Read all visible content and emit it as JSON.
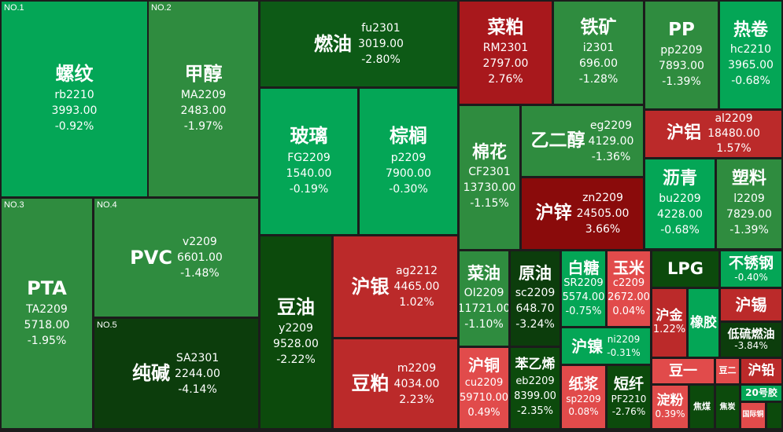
{
  "colors": {
    "background": "#1c1c1c",
    "dark_green": "#0c4a0c",
    "mid_green": "#2f8c3f",
    "bright_green": "#04a656",
    "red": "#bb2a2a",
    "dark_red": "#8a0b0b"
  },
  "ranks": {
    "r1": "NO.1",
    "r2": "NO.2",
    "r3": "NO.3",
    "r4": "NO.4",
    "r5": "NO.5"
  },
  "tiles": {
    "rb": {
      "name": "螺纹",
      "code": "rb2210",
      "price": "3993.00",
      "change": "-0.92%"
    },
    "ma": {
      "name": "甲醇",
      "code": "MA2209",
      "price": "2483.00",
      "change": "-1.97%"
    },
    "fu": {
      "name": "燃油",
      "code": "fu2301",
      "price": "3019.00",
      "change": "-2.80%"
    },
    "rm": {
      "name": "菜粕",
      "code": "RM2301",
      "price": "2797.00",
      "change": "2.76%"
    },
    "i": {
      "name": "铁矿",
      "code": "i2301",
      "price": "696.00",
      "change": "-1.28%"
    },
    "pp": {
      "name": "PP",
      "code": "pp2209",
      "price": "7893.00",
      "change": "-1.39%"
    },
    "hc": {
      "name": "热卷",
      "code": "hc2210",
      "price": "3965.00",
      "change": "-0.68%"
    },
    "fg": {
      "name": "玻璃",
      "code": "FG2209",
      "price": "1540.00",
      "change": "-0.19%"
    },
    "p": {
      "name": "棕榈",
      "code": "p2209",
      "price": "7900.00",
      "change": "-0.30%"
    },
    "cf": {
      "name": "棉花",
      "code": "CF2301",
      "price": "13730.00",
      "change": "-1.15%"
    },
    "eg": {
      "name": "乙二醇",
      "code": "eg2209",
      "price": "4129.00",
      "change": "-1.36%"
    },
    "al": {
      "name": "沪铝",
      "code": "al2209",
      "price": "18480.00",
      "change": "1.57%"
    },
    "zn": {
      "name": "沪锌",
      "code": "zn2209",
      "price": "24505.00",
      "change": "3.66%"
    },
    "bu": {
      "name": "沥青",
      "code": "bu2209",
      "price": "4228.00",
      "change": "-0.68%"
    },
    "l": {
      "name": "塑料",
      "code": "l2209",
      "price": "7829.00",
      "change": "-1.39%"
    },
    "ta": {
      "name": "PTA",
      "code": "TA2209",
      "price": "5718.00",
      "change": "-1.95%"
    },
    "v": {
      "name": "PVC",
      "code": "v2209",
      "price": "6601.00",
      "change": "-1.48%"
    },
    "sa": {
      "name": "纯碱",
      "code": "SA2301",
      "price": "2244.00",
      "change": "-4.14%"
    },
    "y": {
      "name": "豆油",
      "code": "y2209",
      "price": "9528.00",
      "change": "-2.22%"
    },
    "ag": {
      "name": "沪银",
      "code": "ag2212",
      "price": "4465.00",
      "change": "1.02%"
    },
    "m": {
      "name": "豆粕",
      "code": "m2209",
      "price": "4034.00",
      "change": "2.23%"
    },
    "oi": {
      "name": "菜油",
      "code": "OI2209",
      "price": "11721.00",
      "change": "-1.10%"
    },
    "sc": {
      "name": "原油",
      "code": "sc2209",
      "price": "648.70",
      "change": "-3.24%"
    },
    "sr": {
      "name": "白糖",
      "code": "SR2209",
      "price": "5574.00",
      "change": "-0.75%"
    },
    "c": {
      "name": "玉米",
      "code": "c2209",
      "price": "2672.00",
      "change": "0.04%"
    },
    "lpg": {
      "name": "LPG"
    },
    "ss": {
      "name": "不锈钢",
      "change": "-0.40%"
    },
    "ni": {
      "name": "沪镍",
      "code": "ni2209",
      "change": "-0.31%"
    },
    "au": {
      "name": "沪金",
      "change": "1.22%"
    },
    "ru": {
      "name": "橡胶"
    },
    "sn": {
      "name": "沪锡"
    },
    "lu": {
      "name": "低硫燃油",
      "change": "-3.84%"
    },
    "cu": {
      "name": "沪铜",
      "code": "cu2209",
      "price": "59710.00",
      "change": "0.49%"
    },
    "eb": {
      "name": "苯乙烯",
      "code": "eb2209",
      "price": "8399.00",
      "change": "-2.35%"
    },
    "sp": {
      "name": "纸浆",
      "code": "sp2209",
      "change": "0.08%"
    },
    "pf": {
      "name": "短纤",
      "code": "PF2210",
      "change": "-2.76%"
    },
    "a": {
      "name": "豆一"
    },
    "b": {
      "name": "豆二"
    },
    "pb": {
      "name": "沪铅"
    },
    "nr": {
      "name": "20号胶"
    },
    "jd": {
      "name": "淀粉",
      "change": "0.39%"
    },
    "j": {
      "name": "焦煤"
    },
    "jt": {
      "name": "焦炭"
    },
    "bc": {
      "name": "国际铜"
    }
  }
}
